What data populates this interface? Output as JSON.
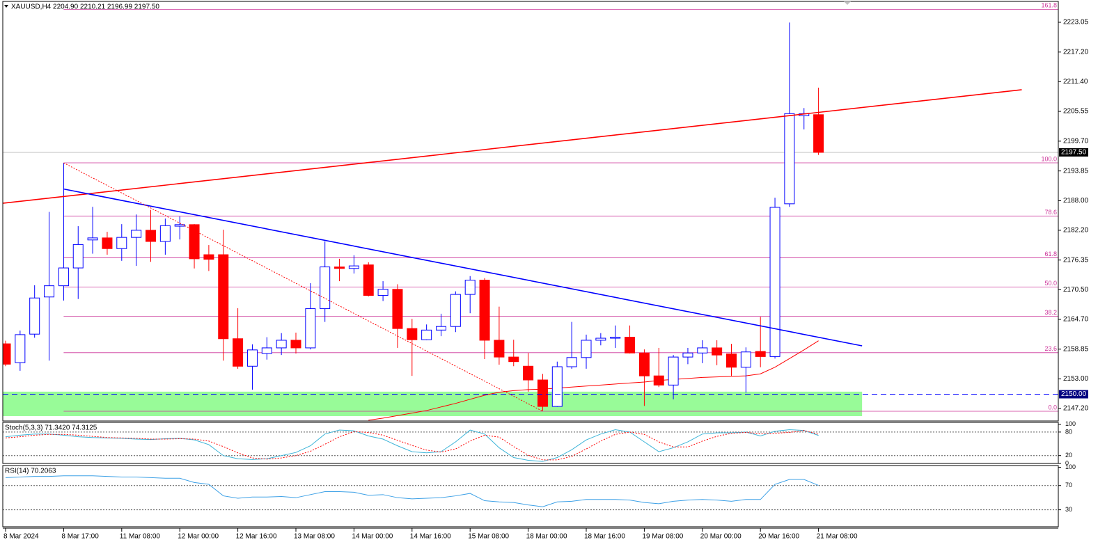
{
  "chart_data": {
    "type": "candlestick",
    "header": "XAUUSD,H4  2204.90 2210.21 2196.99 2197.50",
    "categories": [
      "8 Mar 2024",
      null,
      null,
      null,
      "8 Mar 17:00",
      null,
      null,
      null,
      "11 Mar 08:00",
      null,
      null,
      null,
      "12 Mar 00:00",
      null,
      null,
      null,
      "12 Mar 16:00",
      null,
      null,
      null,
      "13 Mar 08:00",
      null,
      null,
      null,
      "14 Mar 00:00",
      null,
      null,
      null,
      "14 Mar 16:00",
      null,
      null,
      null,
      "15 Mar 08:00",
      null,
      null,
      null,
      "18 Mar 00:00",
      null,
      null,
      null,
      "18 Mar 16:00",
      null,
      null,
      null,
      "19 Mar 08:00",
      null,
      null,
      null,
      "20 Mar 00:00",
      null,
      null,
      null,
      "20 Mar 16:00",
      null,
      null,
      null,
      "21 Mar 08:00"
    ],
    "open": [
      2159.9,
      2156.2,
      2161.8,
      2169.1,
      2171.3,
      2174.8,
      2180.3,
      2180.7,
      2178.6,
      2180.8,
      2182.2,
      2180.0,
      2183.0,
      2183.3,
      2177.4,
      2177.4,
      2160.9,
      2155.5,
      2158.0,
      2159.1,
      2160.6,
      2159.1,
      2166.8,
      2175.0,
      2174.7,
      2175.4,
      2169.4,
      2170.6,
      2162.9,
      2160.7,
      2162.6,
      2163.3,
      2169.6,
      2172.4,
      2160.6,
      2157.3,
      2155.5,
      2152.8,
      2147.6,
      2155.4,
      2157.2,
      2160.6,
      2161.0,
      2161.2,
      2158.1,
      2153.6,
      2151.8,
      2157.3,
      2158.1,
      2159.1,
      2157.9,
      2155.3,
      2158.4,
      2157.4,
      2187.4,
      2204.7,
      2204.9
    ],
    "high": [
      2160.5,
      2162.5,
      2171.4,
      2185.8,
      2195.44,
      2183.0,
      2186.8,
      2181.9,
      2183.4,
      2185.3,
      2186.2,
      2184.5,
      2184.9,
      2183.4,
      2179.3,
      2182.3,
      2166.9,
      2159.8,
      2161.2,
      2162.0,
      2162.1,
      2171.8,
      2180.0,
      2176.6,
      2177.3,
      2175.9,
      2172.2,
      2171.6,
      2164.8,
      2163.7,
      2165.8,
      2170.2,
      2173.2,
      2172.8,
      2167.2,
      2160.7,
      2158.1,
      2154.0,
      2156.4,
      2164.2,
      2161.7,
      2162.0,
      2163.5,
      2163.5,
      2158.8,
      2159.1,
      2157.7,
      2159.1,
      2160.6,
      2160.6,
      2159.9,
      2159.2,
      2165.2,
      2188.6,
      2223.0,
      2206.2,
      2210.21
    ],
    "low": [
      2155.5,
      2154.6,
      2161.1,
      2156.6,
      2168.4,
      2168.7,
      2177.6,
      2177.4,
      2176.2,
      2175.2,
      2176.0,
      2177.4,
      2180.4,
      2174.7,
      2174.2,
      2156.6,
      2155.0,
      2150.9,
      2156.8,
      2157.7,
      2158.0,
      2158.8,
      2164.2,
      2172.2,
      2173.7,
      2169.2,
      2168.3,
      2159.1,
      2153.6,
      2160.6,
      2161.4,
      2162.2,
      2165.9,
      2156.9,
      2155.8,
      2155.5,
      2150.5,
      2146.7,
      2147.5,
      2155.0,
      2155.0,
      2159.6,
      2159.1,
      2158.0,
      2147.7,
      2151.4,
      2149.0,
      2155.9,
      2156.1,
      2155.7,
      2153.6,
      2150.3,
      2155.3,
      2157.0,
      2186.8,
      2202.0,
      2196.99
    ],
    "close": [
      2155.9,
      2161.7,
      2168.9,
      2171.3,
      2174.8,
      2179.4,
      2180.7,
      2178.6,
      2180.8,
      2182.2,
      2180.0,
      2183.1,
      2183.3,
      2176.6,
      2176.5,
      2160.9,
      2155.5,
      2158.7,
      2159.1,
      2160.6,
      2159.1,
      2166.8,
      2175.0,
      2174.7,
      2175.2,
      2169.4,
      2170.6,
      2162.9,
      2160.7,
      2162.6,
      2163.3,
      2169.6,
      2172.4,
      2160.6,
      2157.3,
      2156.4,
      2152.8,
      2147.6,
      2155.4,
      2157.2,
      2160.6,
      2161.0,
      2161.2,
      2158.1,
      2153.6,
      2151.8,
      2157.3,
      2158.1,
      2159.1,
      2157.7,
      2155.3,
      2158.3,
      2157.4,
      2186.7,
      2205.1,
      2205.1,
      2197.5
    ],
    "up_color": "#0000ff",
    "down_color": "#ff0000",
    "ylim": [
      2144.74,
      2227.15
    ],
    "yticks": [
      {
        "value": 2223.05,
        "label": "2223.05"
      },
      {
        "value": 2217.2,
        "label": "2217.20"
      },
      {
        "value": 2211.4,
        "label": "2211.40"
      },
      {
        "value": 2205.55,
        "label": "2205.55"
      },
      {
        "value": 2199.7,
        "label": "2199.70"
      },
      {
        "value": 2193.85,
        "label": "2193.85"
      },
      {
        "value": 2188,
        "label": "2188.00"
      },
      {
        "value": 2182.2,
        "label": "2182.20"
      },
      {
        "value": 2176.35,
        "label": "2176.35"
      },
      {
        "value": 2170.5,
        "label": "2170.50"
      },
      {
        "value": 2164.7,
        "label": "2164.70"
      },
      {
        "value": 2158.85,
        "label": "2158.85"
      },
      {
        "value": 2153,
        "label": "2153.00"
      },
      {
        "value": 2147.2,
        "label": "2147.20"
      }
    ],
    "price_label": {
      "value": 2197.5,
      "label": "2197.50"
    },
    "level_line": {
      "value": 2150,
      "label": "2150.00",
      "color": "#0000ff"
    },
    "zone": {
      "x": [
        -0.2,
        59
      ],
      "range": [
        2145.7,
        2150.5
      ],
      "color": "#98fb98"
    },
    "trendlines": [
      {
        "color": "#ff0000",
        "style": "solid",
        "x": [
          -0.2,
          70
        ],
        "values": [
          2187.5,
          2209.8
        ]
      },
      {
        "color": "#0000ff",
        "style": "solid",
        "x": [
          4,
          59
        ],
        "values": [
          2190.3,
          2159.5
        ]
      },
      {
        "color": "#ff0000",
        "style": "dotted",
        "x": [
          4,
          37
        ],
        "values": [
          2195.44,
          2146.65
        ]
      }
    ],
    "fib": {
      "color": "#cc3399",
      "x_start": 4,
      "levels": [
        {
          "label": "161.8",
          "value": 2225.6
        },
        {
          "label": "100.0",
          "value": 2195.44
        },
        {
          "label": "78.6",
          "value": 2185.0
        },
        {
          "label": "61.8",
          "value": 2176.8
        },
        {
          "label": "50.0",
          "value": 2171.05
        },
        {
          "label": "38.2",
          "value": 2165.29
        },
        {
          "label": "23.6",
          "value": 2158.16
        },
        {
          "label": "0.0",
          "value": 2146.65
        }
      ]
    },
    "ma": {
      "color": "#ff0000",
      "values": [
        null,
        null,
        null,
        null,
        null,
        null,
        null,
        null,
        null,
        null,
        null,
        null,
        null,
        null,
        null,
        null,
        null,
        null,
        null,
        null,
        null,
        null,
        null,
        null,
        null,
        2144.9,
        2145.3,
        2145.8,
        2146.3,
        2146.8,
        2147.5,
        2148.2,
        2149.0,
        2149.8,
        2150.4,
        2150.7,
        2150.9,
        2151.0,
        2151.2,
        2151.4,
        2151.6,
        2151.8,
        2152.0,
        2152.2,
        2152.4,
        2152.7,
        2152.9,
        2153.1,
        2153.3,
        2153.4,
        2153.5,
        2153.6,
        2154.0,
        2155.3,
        2157.0,
        2158.7,
        2160.5
      ]
    },
    "stoch": {
      "title": "Stoch(5,3,3) 71.3420 74.3125",
      "ylim": [
        0,
        104.6
      ],
      "yticks": [
        100,
        80,
        20,
        0
      ],
      "levels": [
        80,
        20
      ],
      "series": [
        {
          "color": "#3cb4d8",
          "style": "solid",
          "values": [
            68,
            72,
            75,
            75,
            72,
            68,
            66,
            65,
            64,
            62,
            61,
            63,
            64,
            60,
            48,
            20,
            12,
            10,
            12,
            20,
            28,
            45,
            75,
            85,
            83,
            70,
            62,
            45,
            30,
            27,
            30,
            55,
            85,
            75,
            40,
            15,
            8,
            5,
            15,
            35,
            60,
            75,
            86,
            80,
            55,
            30,
            40,
            55,
            75,
            78,
            78,
            80,
            70,
            82,
            86,
            84,
            71.342
          ]
        },
        {
          "color": "#ff0000",
          "style": "dotted",
          "values": [
            65,
            68,
            72,
            74,
            74,
            72,
            69,
            66,
            65,
            64,
            62,
            62,
            63,
            62,
            57,
            43,
            27,
            14,
            11,
            14,
            20,
            31,
            49,
            68,
            81,
            79,
            72,
            59,
            46,
            34,
            29,
            37,
            57,
            72,
            67,
            43,
            21,
            9,
            9,
            18,
            37,
            57,
            74,
            80,
            74,
            55,
            42,
            42,
            57,
            69,
            77,
            79,
            76,
            77,
            79,
            84,
            74.3125
          ]
        }
      ]
    },
    "rsi": {
      "title": "RSI(14) 70.2063",
      "ylim": [
        2,
        103
      ],
      "yticks": [
        100,
        70,
        30
      ],
      "levels": [
        70,
        30
      ],
      "series": [
        {
          "color": "#3ca0e6",
          "style": "solid",
          "values": [
            83,
            84,
            85,
            85,
            86,
            86,
            86,
            85,
            84,
            84,
            83,
            82,
            82,
            75,
            72,
            53,
            49,
            51,
            51,
            52,
            50,
            55,
            60,
            60,
            59,
            54,
            55,
            50,
            48,
            49,
            50,
            53,
            57,
            45,
            43,
            42,
            38,
            35,
            43,
            44,
            47,
            47,
            47,
            46,
            42,
            40,
            44,
            46,
            47,
            46,
            44,
            47,
            47,
            72,
            80,
            80,
            70.2063
          ]
        }
      ]
    }
  }
}
